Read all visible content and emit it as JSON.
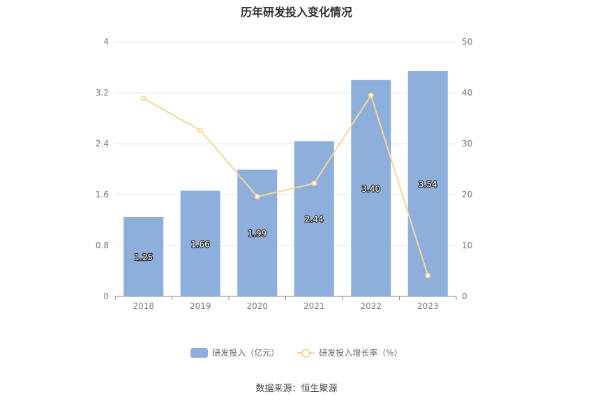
{
  "chart_data": {
    "type": "bar",
    "title": "历年研发投入变化情况",
    "categories": [
      "2018",
      "2019",
      "2020",
      "2021",
      "2022",
      "2023"
    ],
    "series": [
      {
        "name": "研发投入（亿元）",
        "type": "bar",
        "axis": "left",
        "color": "#8eaedb",
        "values": [
          1.25,
          1.66,
          1.99,
          2.44,
          3.4,
          3.54
        ],
        "labels": [
          "1.25",
          "1.66",
          "1.99",
          "2.44",
          "3.40",
          "3.54"
        ]
      },
      {
        "name": "研发投入增长率（%）",
        "type": "line",
        "axis": "right",
        "color": "#f7d69b",
        "values": [
          38.9,
          32.6,
          19.6,
          22.2,
          39.5,
          4.1
        ]
      }
    ],
    "y_left": {
      "ylim": [
        0,
        4
      ],
      "ticks": [
        "0",
        "0.8",
        "1.6",
        "2.4",
        "3.2",
        "4"
      ]
    },
    "y_right": {
      "ylim": [
        0,
        50
      ],
      "ticks": [
        "0",
        "10",
        "20",
        "30",
        "40",
        "50"
      ]
    },
    "grid": true,
    "legend_position": "bottom"
  },
  "source_note": "数据来源：恒生聚源"
}
